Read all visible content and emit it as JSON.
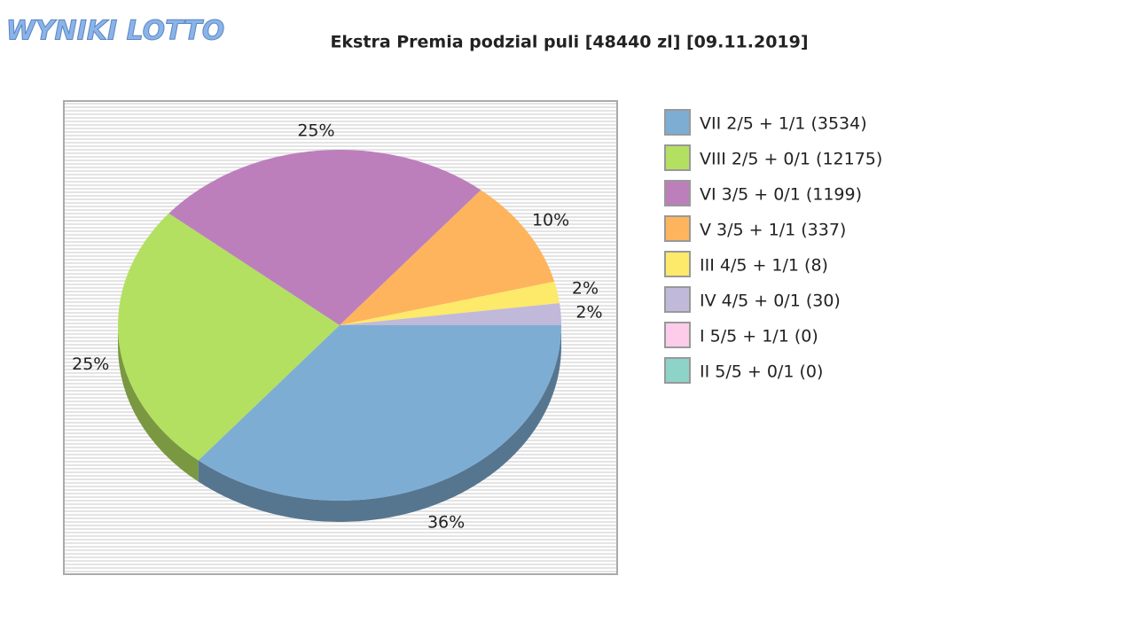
{
  "logo": "WYNIKI LOTTO",
  "chart_data": {
    "type": "pie",
    "title": "Ekstra Premia podzial puli [48440 zl] [09.11.2019]",
    "categories": [
      "VII 2/5 + 1/1 (3534)",
      "VIII 2/5 + 0/1 (12175)",
      "VI 3/5 + 0/1 (1199)",
      "V 3/5 + 1/1 (337)",
      "III 4/5 + 1/1 (8)",
      "IV 4/5 + 0/1 (30)",
      "I 5/5 + 1/1 (0)",
      "II 5/5 + 0/1 (0)"
    ],
    "values": [
      36,
      25,
      25,
      10,
      2,
      2,
      0,
      0
    ],
    "value_labels": [
      "36%",
      "25%",
      "25%",
      "10%",
      "2%",
      "2%",
      null,
      null
    ],
    "colors": [
      "#7eadd4",
      "#b3e060",
      "#bc7fbc",
      "#fdb45c",
      "#fde96a",
      "#c0b9da",
      "#fcccea",
      "#8dd3c7"
    ],
    "legend": "right"
  }
}
